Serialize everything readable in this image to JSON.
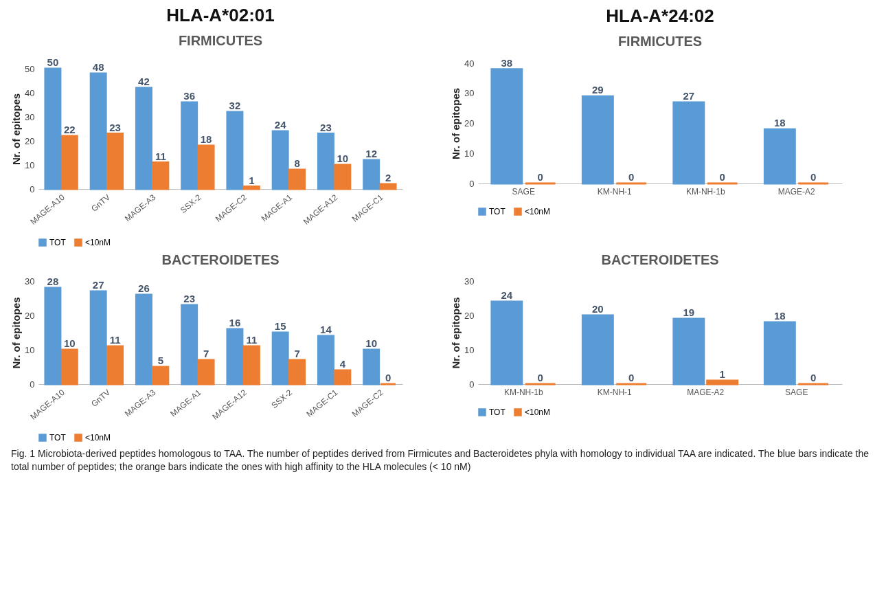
{
  "chart_data": [
    {
      "type": "bar",
      "title": "HLA-A*02:01",
      "subtitle": "FIRMICUTES",
      "ylabel": "Nr. of epitopes",
      "categories": [
        "MAGE-A10",
        "GnTV",
        "MAGE-A3",
        "SSX-2",
        "MAGE-C2",
        "MAGE-A1",
        "MAGE-A12",
        "MAGE-C1"
      ],
      "series": [
        {
          "name": "TOT",
          "color": "#5b9bd5",
          "values": [
            50,
            48,
            42,
            36,
            32,
            24,
            23,
            12
          ]
        },
        {
          "name": "<10nM",
          "color": "#ed7d31",
          "values": [
            22,
            23,
            11,
            18,
            1,
            8,
            10,
            2
          ]
        }
      ],
      "ylim": [
        0,
        50
      ],
      "yticks": [
        0,
        10,
        20,
        30,
        40,
        50
      ],
      "data_labels": true,
      "legend": "bottom"
    },
    {
      "type": "bar",
      "title": "HLA-A*24:02",
      "subtitle": "FIRMICUTES",
      "ylabel": "Nr. of epitopes",
      "categories": [
        "SAGE",
        "KM-NH-1",
        "KM-NH-1b",
        "MAGE-A2"
      ],
      "series": [
        {
          "name": "TOT",
          "color": "#5b9bd5",
          "values": [
            38,
            29,
            27,
            18
          ]
        },
        {
          "name": "<10nM",
          "color": "#ed7d31",
          "values": [
            0,
            0,
            0,
            0
          ]
        }
      ],
      "ylim": [
        0,
        40
      ],
      "yticks": [
        0,
        10,
        20,
        30,
        40
      ],
      "data_labels": true,
      "legend": "bottom"
    },
    {
      "type": "bar",
      "title": "BACTEROIDETES",
      "ylabel": "Nr. of epitopes",
      "categories": [
        "MAGE-A10",
        "GnTV",
        "MAGE-A3",
        "MAGE-A1",
        "MAGE-A12",
        "SSX-2",
        "MAGE-C1",
        "MAGE-C2"
      ],
      "series": [
        {
          "name": "TOT",
          "color": "#5b9bd5",
          "values": [
            28,
            27,
            26,
            23,
            16,
            15,
            14,
            10
          ]
        },
        {
          "name": "<10nM",
          "color": "#ed7d31",
          "values": [
            10,
            11,
            5,
            7,
            11,
            7,
            4,
            0
          ]
        }
      ],
      "ylim": [
        0,
        30
      ],
      "yticks": [
        0,
        10,
        20,
        30
      ],
      "data_labels": true,
      "legend": "bottom"
    },
    {
      "type": "bar",
      "title": "BACTEROIDETES",
      "ylabel": "Nr. of epitopes",
      "categories": [
        "KM-NH-1b",
        "KM-NH-1",
        "MAGE-A2",
        "SAGE"
      ],
      "series": [
        {
          "name": "TOT",
          "color": "#5b9bd5",
          "values": [
            24,
            20,
            19,
            18
          ]
        },
        {
          "name": "<10nM",
          "color": "#ed7d31",
          "values": [
            0,
            0,
            1,
            0
          ]
        }
      ],
      "ylim": [
        0,
        30
      ],
      "yticks": [
        0,
        10,
        20,
        30
      ],
      "data_labels": true,
      "legend": "bottom",
      "annotations": [
        "Fig. 1  Microbiota-derived peptides homologous to TAA. The number of peptides derived from Firmicutes and Bacteroidetes phyla with homology to individual TAA are indicated. The blue bars indicate the total number of peptides; the orange bars indicate the ones with high affinity to the HLA molecules (< 10 nM)"
      ]
    }
  ]
}
